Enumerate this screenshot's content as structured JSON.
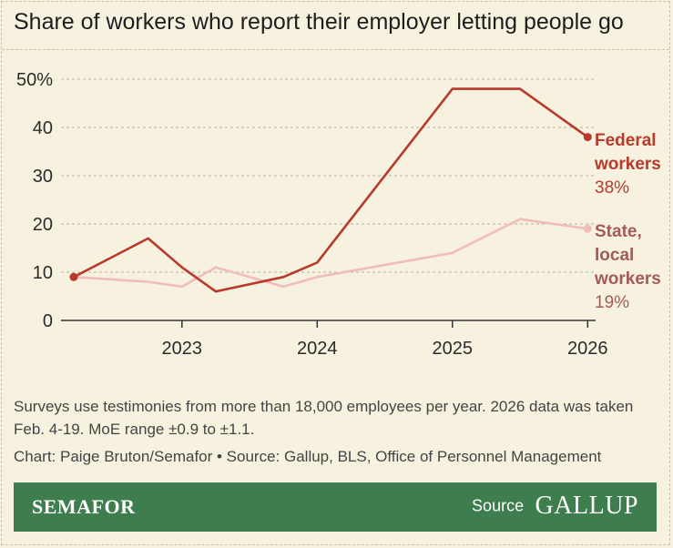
{
  "title": "Share of workers who report their employer letting people go",
  "note": "Surveys use testimonies from more than 18,000 employees per year. 2026 data was taken Feb. 4-19. MoE range ±0.9 to ±1.1.",
  "credit": "Chart: Paige Bruton/Semafor • Source: Gallup, BLS, Office of Personnel Management",
  "footer": {
    "brand": "SEMAFOR",
    "source_label": "Source",
    "source_logo": "GALLUP"
  },
  "chart_data": {
    "type": "line",
    "x_ticks": [
      2023,
      2024,
      2025,
      2026
    ],
    "xlim": [
      2022.1,
      2026.1
    ],
    "ylim": [
      0,
      50
    ],
    "y_ticks": [
      0,
      10,
      20,
      30,
      40,
      50
    ],
    "y_tick_labels": [
      "0",
      "10",
      "20",
      "30",
      "40",
      "50%"
    ],
    "grid": true,
    "series": [
      {
        "name": "Federal workers",
        "label_lines": [
          "Federal",
          "workers"
        ],
        "end_label": "38%",
        "color": "#b73a2c",
        "points": [
          [
            2022.2,
            9
          ],
          [
            2022.75,
            17
          ],
          [
            2023.0,
            11
          ],
          [
            2023.25,
            6
          ],
          [
            2023.75,
            9
          ],
          [
            2024.0,
            12
          ],
          [
            2025.0,
            48
          ],
          [
            2025.5,
            48
          ],
          [
            2026.0,
            38
          ]
        ]
      },
      {
        "name": "State, local workers",
        "label_lines": [
          "State,",
          "local",
          "workers"
        ],
        "end_label": "19%",
        "color": "#f2bcba",
        "label_color": "#a35a5c",
        "points": [
          [
            2022.2,
            9
          ],
          [
            2022.75,
            8
          ],
          [
            2023.0,
            7
          ],
          [
            2023.25,
            11
          ],
          [
            2023.75,
            7
          ],
          [
            2024.0,
            9
          ],
          [
            2025.0,
            14
          ],
          [
            2025.5,
            21
          ],
          [
            2026.0,
            19
          ]
        ]
      }
    ]
  }
}
